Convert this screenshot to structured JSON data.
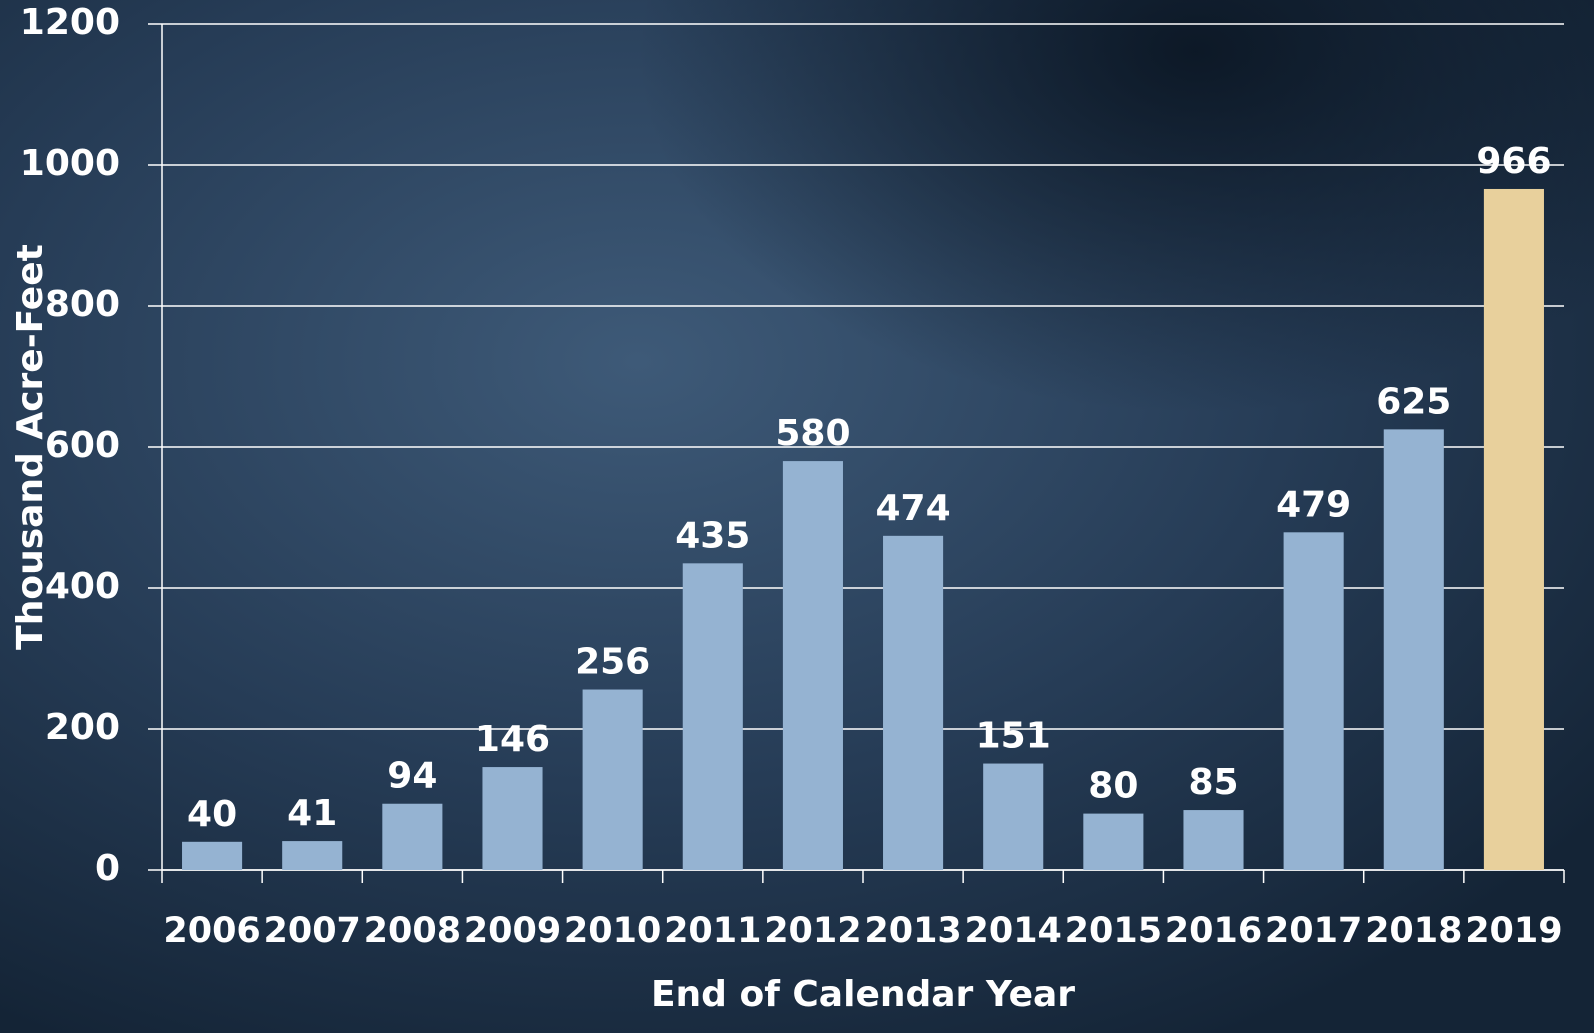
{
  "chart_data": {
    "type": "bar",
    "x_label": "End of Calendar Year",
    "y_label": "Thousand Acre-Feet",
    "categories": [
      "2006",
      "2007",
      "2008",
      "2009",
      "2010",
      "2011",
      "2012",
      "2013",
      "2014",
      "2015",
      "2016",
      "2017",
      "2018",
      "2019"
    ],
    "values": [
      40,
      41,
      94,
      146,
      256,
      435,
      580,
      474,
      151,
      80,
      85,
      479,
      625,
      966
    ],
    "colors": [
      "#95b3d2",
      "#95b3d2",
      "#95b3d2",
      "#95b3d2",
      "#95b3d2",
      "#95b3d2",
      "#95b3d2",
      "#95b3d2",
      "#95b3d2",
      "#95b3d2",
      "#95b3d2",
      "#95b3d2",
      "#95b3d2",
      "#e8d09c"
    ],
    "ylim": [
      0,
      1200
    ],
    "yticks": [
      0,
      200,
      400,
      600,
      800,
      1000,
      1200
    ],
    "grid": true
  }
}
